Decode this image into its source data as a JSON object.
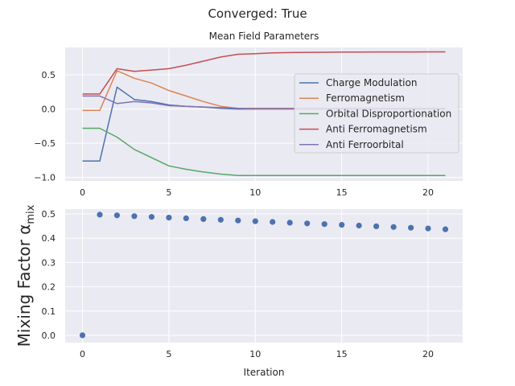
{
  "figure": {
    "suptitle": "Converged: True"
  },
  "chart_data": [
    {
      "type": "line",
      "title": "Mean Field Parameters",
      "xlabel": "",
      "ylabel": "",
      "xlim": [
        -1,
        22
      ],
      "ylim": [
        -1.05,
        0.9
      ],
      "xticks": [
        0,
        5,
        10,
        15,
        20
      ],
      "yticks": [
        0.5,
        0.0,
        -0.5,
        -1.0
      ],
      "ytick_labels": [
        "0.5",
        "0.0",
        "−0.5",
        "−1.0"
      ],
      "grid": true,
      "legend_position": "right",
      "x": [
        0,
        1,
        2,
        3,
        4,
        5,
        6,
        7,
        8,
        9,
        10,
        11,
        12,
        13,
        14,
        15,
        16,
        17,
        18,
        19,
        20,
        21
      ],
      "series": [
        {
          "name": "Charge Modulation",
          "color": "#4c72b0",
          "values": [
            -0.76,
            -0.76,
            0.32,
            0.14,
            0.11,
            0.06,
            0.04,
            0.03,
            0.01,
            0.0,
            0.0,
            0.0,
            0.0,
            0.0,
            0.0,
            0.0,
            0.0,
            0.0,
            0.0,
            0.0,
            0.0,
            0.0
          ]
        },
        {
          "name": "Ferromagnetism",
          "color": "#dd8452",
          "values": [
            -0.02,
            -0.02,
            0.56,
            0.45,
            0.38,
            0.27,
            0.19,
            0.11,
            0.04,
            0.01,
            0.0,
            0.0,
            0.0,
            0.0,
            0.0,
            0.0,
            0.0,
            0.0,
            0.0,
            0.0,
            0.0,
            0.0
          ]
        },
        {
          "name": "Orbital Disproportionation",
          "color": "#55a868",
          "values": [
            -0.28,
            -0.28,
            -0.41,
            -0.59,
            -0.71,
            -0.83,
            -0.88,
            -0.92,
            -0.95,
            -0.97,
            -0.97,
            -0.97,
            -0.97,
            -0.97,
            -0.97,
            -0.97,
            -0.97,
            -0.97,
            -0.97,
            -0.97,
            -0.97,
            -0.97
          ]
        },
        {
          "name": "Anti Ferromagnetism",
          "color": "#c44e52",
          "values": [
            0.22,
            0.22,
            0.59,
            0.55,
            0.57,
            0.59,
            0.64,
            0.7,
            0.76,
            0.8,
            0.81,
            0.82,
            0.825,
            0.828,
            0.83,
            0.832,
            0.833,
            0.834,
            0.834,
            0.834,
            0.835,
            0.835
          ]
        },
        {
          "name": "Anti Ferroorbital",
          "color": "#8172b3",
          "values": [
            0.19,
            0.19,
            0.08,
            0.11,
            0.09,
            0.05,
            0.04,
            0.03,
            0.02,
            0.01,
            0.01,
            0.01,
            0.01,
            0.01,
            0.01,
            0.01,
            0.01,
            0.01,
            0.01,
            0.01,
            0.01,
            0.01
          ]
        }
      ]
    },
    {
      "type": "scatter",
      "title": "",
      "xlabel": "Iteration",
      "ylabel": "Mixing Factor α",
      "ylabel_subscript": "mix",
      "xlim": [
        -1,
        22
      ],
      "ylim": [
        -0.03,
        0.52
      ],
      "xticks": [
        0,
        5,
        10,
        15,
        20
      ],
      "yticks": [
        0.0,
        0.1,
        0.2,
        0.3,
        0.4,
        0.5
      ],
      "ytick_labels": [
        "0.0",
        "0.1",
        "0.2",
        "0.3",
        "0.4",
        "0.5"
      ],
      "grid": true,
      "color": "#4c72b0",
      "x": [
        0,
        1,
        2,
        3,
        4,
        5,
        6,
        7,
        8,
        9,
        10,
        11,
        12,
        13,
        14,
        15,
        16,
        17,
        18,
        19,
        20,
        21
      ],
      "values": [
        0.0,
        0.497,
        0.494,
        0.491,
        0.488,
        0.485,
        0.482,
        0.479,
        0.476,
        0.473,
        0.47,
        0.467,
        0.464,
        0.461,
        0.458,
        0.455,
        0.452,
        0.449,
        0.446,
        0.443,
        0.44,
        0.437
      ]
    }
  ]
}
